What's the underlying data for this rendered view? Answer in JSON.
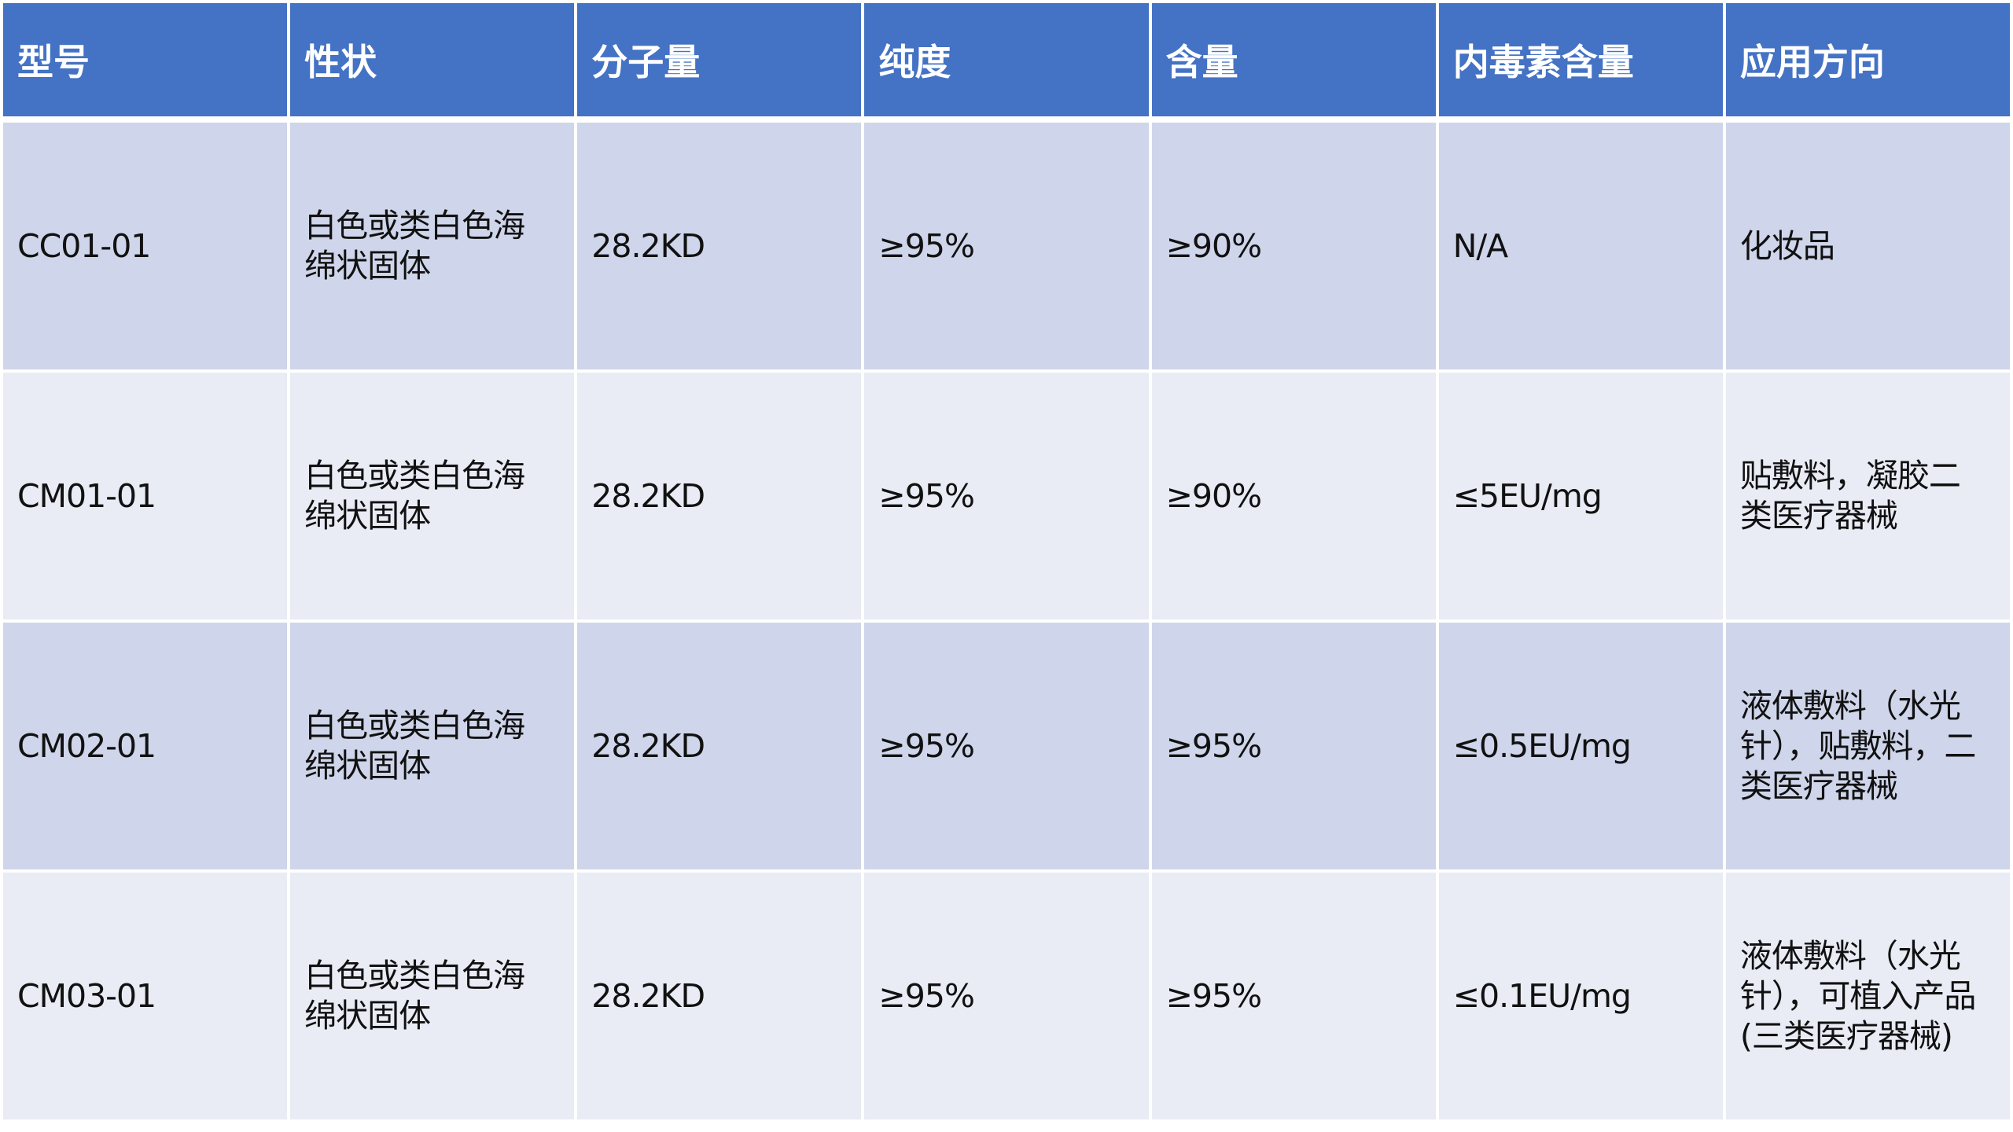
{
  "colors": {
    "header_bg": "#4472C4",
    "row_odd": "#CFD5EA",
    "row_even": "#E9EBF5"
  },
  "table": {
    "headers": [
      "型号",
      "性状",
      "分子量",
      "纯度",
      "含量",
      "内毒素含量",
      "应用方向"
    ],
    "rows": [
      [
        [
          "CC01-01"
        ],
        [
          "白色或类白色海",
          "绵状固体"
        ],
        [
          "28.2KD"
        ],
        [
          "≥95%"
        ],
        [
          "≥90%"
        ],
        [
          "N/A"
        ],
        [
          "化妆品"
        ]
      ],
      [
        [
          "CM01-01"
        ],
        [
          "白色或类白色海",
          "绵状固体"
        ],
        [
          "28.2KD"
        ],
        [
          "≥95%"
        ],
        [
          "≥90%"
        ],
        [
          "≤5EU/mg"
        ],
        [
          "贴敷料，凝胶二",
          "类医疗器械"
        ]
      ],
      [
        [
          "CM02-01"
        ],
        [
          "白色或类白色海",
          "绵状固体"
        ],
        [
          "28.2KD"
        ],
        [
          "≥95%"
        ],
        [
          "≥95%"
        ],
        [
          "≤0.5EU/mg"
        ],
        [
          "液体敷料（水光",
          "针），贴敷料，二",
          "类医疗器械"
        ]
      ],
      [
        [
          "CM03-01"
        ],
        [
          "白色或类白色海",
          "绵状固体"
        ],
        [
          "28.2KD"
        ],
        [
          "≥95%"
        ],
        [
          "≥95%"
        ],
        [
          "≤0.1EU/mg"
        ],
        [
          "液体敷料（水光",
          "针），可植入产品",
          "(三类医疗器械)"
        ]
      ]
    ]
  }
}
